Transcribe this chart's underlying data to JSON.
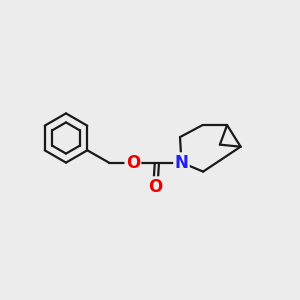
{
  "bg_color": "#ececec",
  "bond_color": "#1a1a1a",
  "atom_colors": {
    "O": "#ee0000",
    "N": "#2222ee"
  },
  "bond_width": 1.6,
  "font_size": 12,
  "figsize": [
    3.0,
    3.0
  ],
  "dpi": 100
}
